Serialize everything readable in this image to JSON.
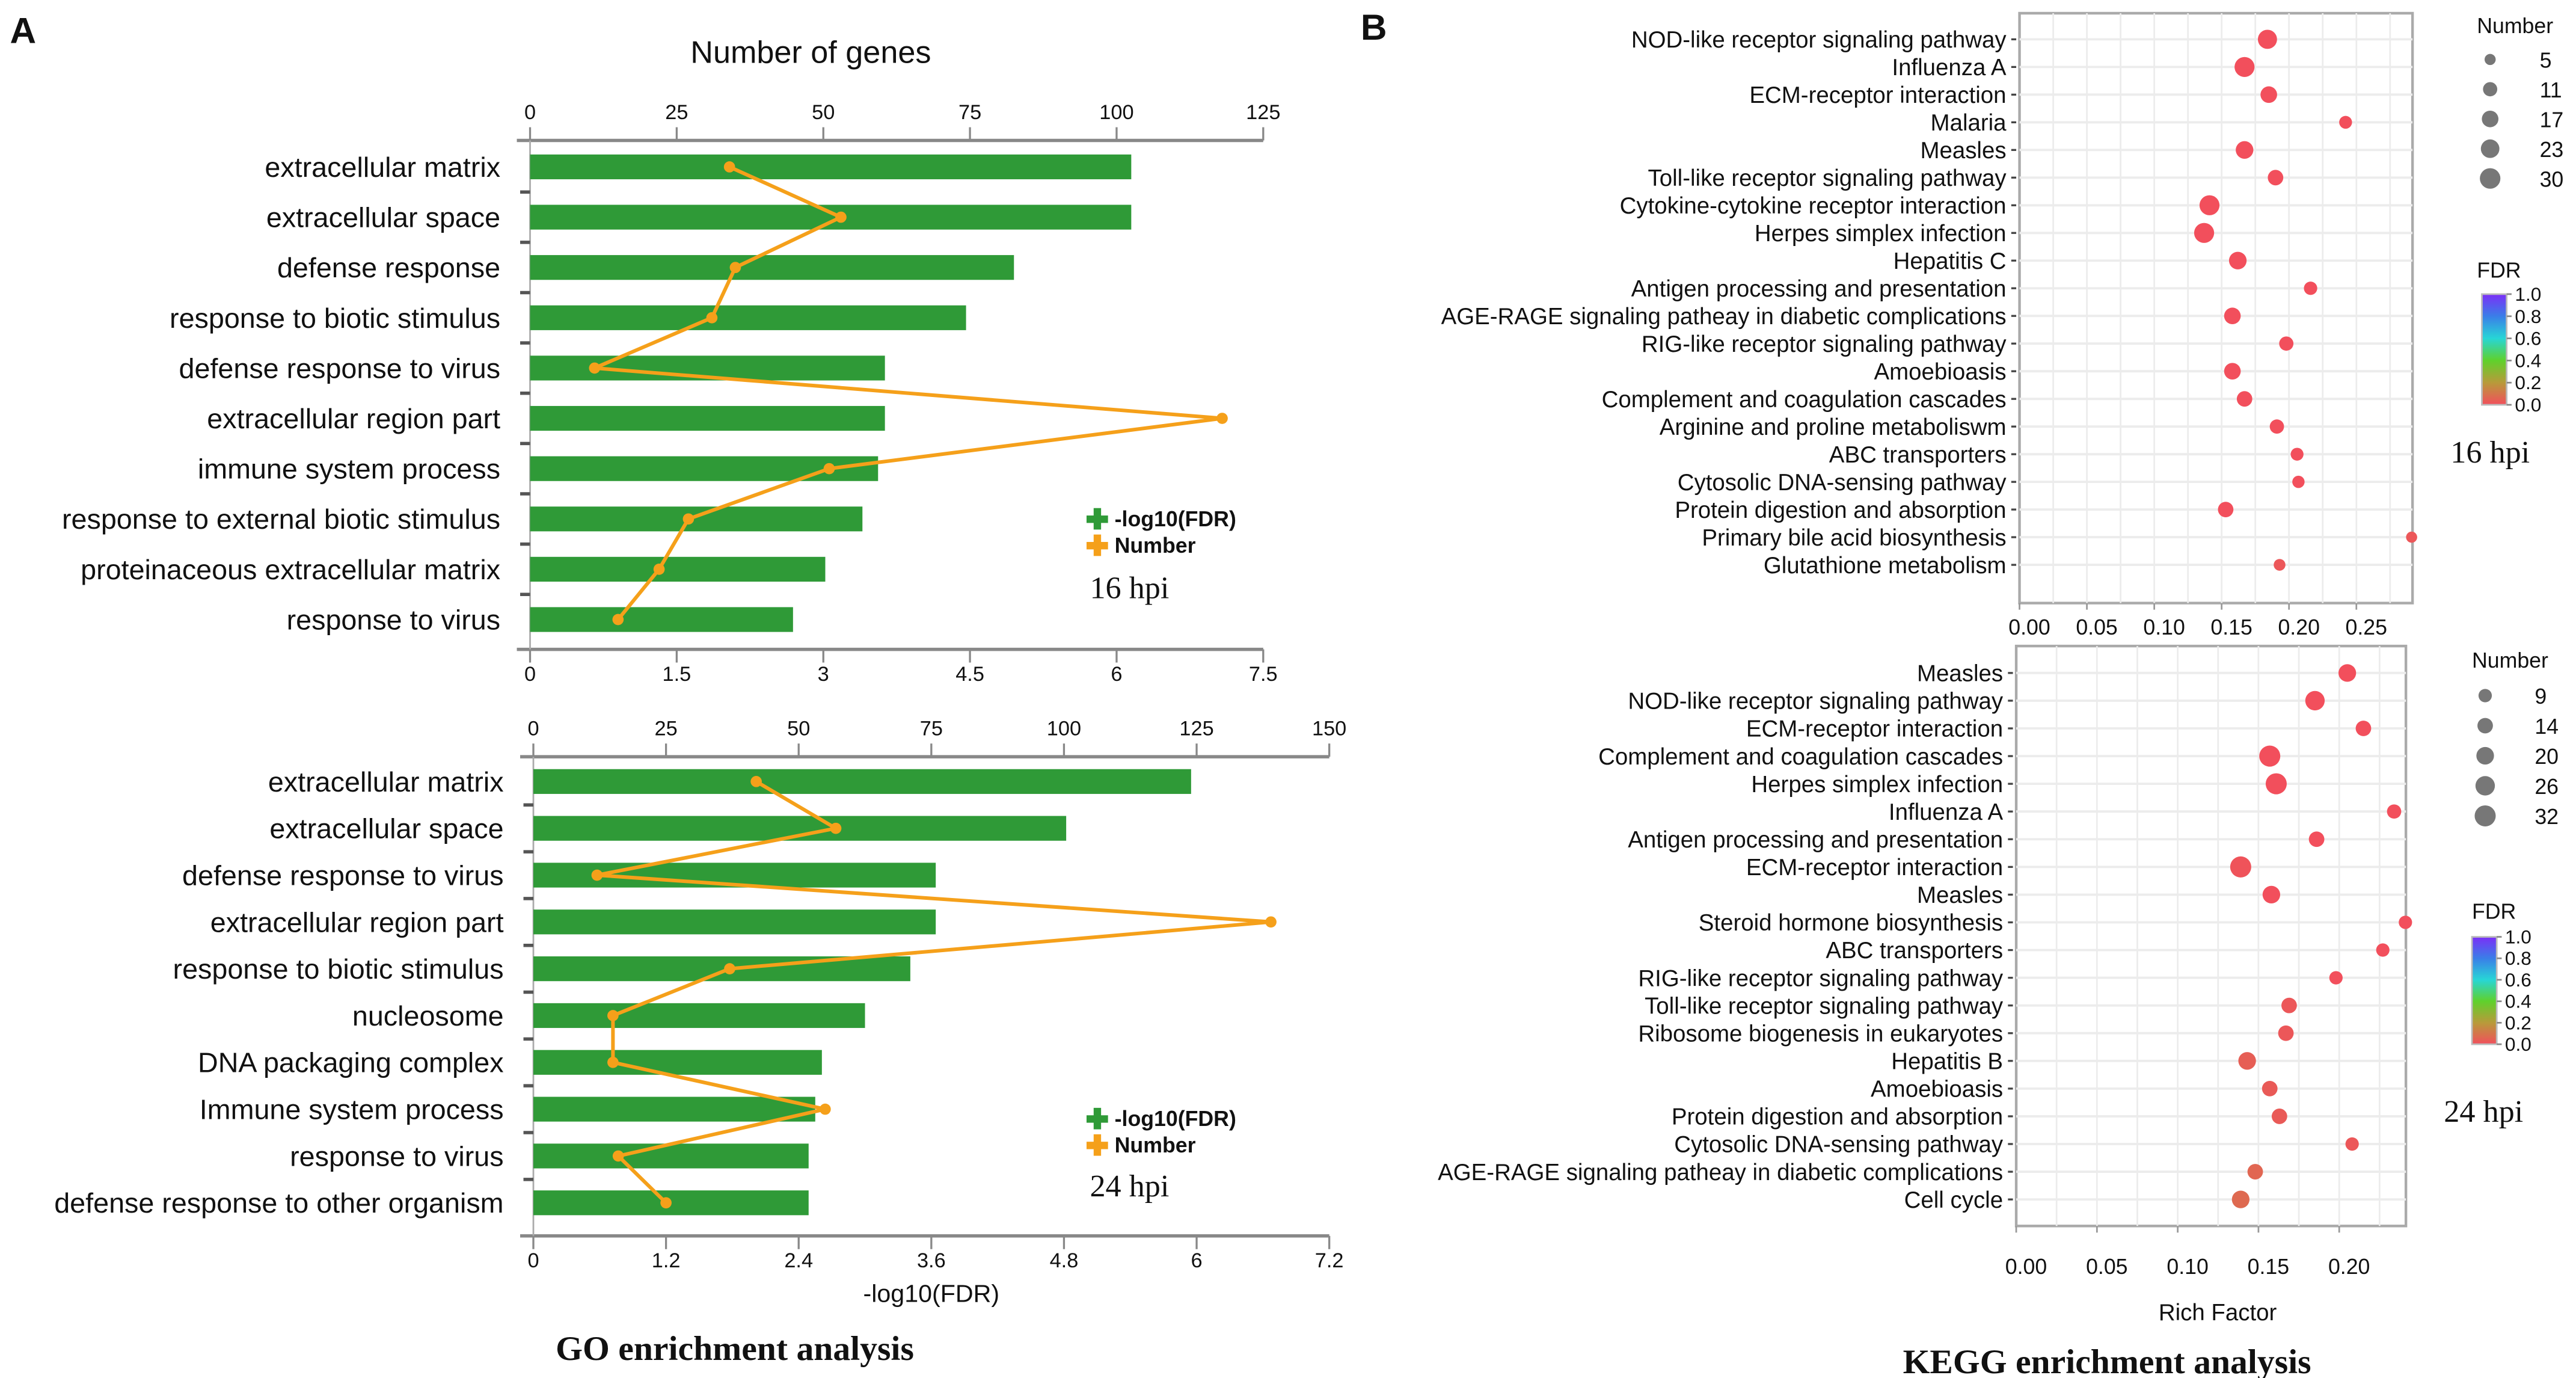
{
  "panel_labels": {
    "a": "A",
    "b": "B"
  },
  "figure_titles": {
    "go": "GO enrichment analysis",
    "kegg": "KEGG enrichment analysis"
  },
  "chart_data": [
    {
      "type": "bar",
      "id": "go16",
      "timepoint": "16 hpi",
      "title": "Number of genes",
      "top_axis": {
        "label": "Number of genes",
        "range": [
          0,
          125
        ],
        "ticks": [
          "0",
          "25",
          "50",
          "75",
          "100",
          "125"
        ]
      },
      "bottom_axis": {
        "label": "",
        "range": [
          0,
          7.5
        ],
        "ticks": [
          "0",
          "1.5",
          "3",
          "4.5",
          "6",
          "7.5"
        ]
      },
      "categories": [
        "extracellular matrix",
        "extracellular space",
        "defense response",
        "response to biotic stimulus",
        "defense response to virus",
        "extracellular region part",
        "immune system process",
        "response to external biotic stimulus",
        "proteinaceous extracellular matrix",
        "response to virus"
      ],
      "series": [
        {
          "name": "-log10(FDR)",
          "kind": "bar",
          "axis": "bottom",
          "color": "#2f9a37",
          "values": [
            6.15,
            6.15,
            4.95,
            4.46,
            3.63,
            3.63,
            3.56,
            3.4,
            3.02,
            2.69
          ]
        },
        {
          "name": "Number",
          "kind": "line",
          "axis": "top",
          "color": "#f5a01a",
          "values": [
            34,
            53,
            35,
            31,
            11,
            118,
            51,
            27,
            22,
            15
          ]
        }
      ],
      "legend": "bottom-right"
    },
    {
      "type": "bar",
      "id": "go24",
      "timepoint": "24 hpi",
      "title": "",
      "top_axis": {
        "label": "",
        "range": [
          0,
          150
        ],
        "ticks": [
          "0",
          "25",
          "50",
          "75",
          "100",
          "125",
          "150"
        ]
      },
      "bottom_axis": {
        "label": "-log10(FDR)",
        "range": [
          0,
          7.2
        ],
        "ticks": [
          "0",
          "1.2",
          "2.4",
          "3.6",
          "4.8",
          "6",
          "7.2"
        ]
      },
      "categories": [
        "extracellular matrix",
        "extracellular space",
        "defense response to virus",
        "extracellular region part",
        "response to biotic stimulus",
        "nucleosome",
        "DNA packaging complex",
        "Immune system process",
        "response to virus",
        "defense response to other organism"
      ],
      "series": [
        {
          "name": "-log10(FDR)",
          "kind": "bar",
          "axis": "bottom",
          "color": "#2f9a37",
          "values": [
            5.95,
            4.82,
            3.64,
            3.64,
            3.41,
            3.0,
            2.61,
            2.55,
            2.49,
            2.49
          ]
        },
        {
          "name": "Number",
          "kind": "line",
          "axis": "top",
          "color": "#f5a01a",
          "values": [
            42,
            57,
            12,
            139,
            37,
            15,
            15,
            55,
            16,
            25
          ]
        }
      ],
      "legend": "bottom-right"
    },
    {
      "type": "scatter",
      "id": "kegg16",
      "timepoint": "16 hpi",
      "xlabel": "",
      "xlim": [
        0,
        0.29
      ],
      "x_ticks": [
        "0.00",
        "0.05",
        "0.10",
        "0.15",
        "0.20",
        "0.25"
      ],
      "categories": [
        "NOD-like receptor signaling pathway",
        "Influenza A",
        "ECM-receptor interaction",
        "Malaria",
        "Measles",
        "Toll-like receptor signaling pathway",
        "Cytokine-cytokine receptor interaction",
        "Herpes simplex infection",
        "Hepatitis C",
        "Antigen processing and presentation",
        "AGE-RAGE signaling patheay in diabetic complications",
        "RIG-like receptor signaling pathway",
        "Amoebioasis",
        "Complement and coagulation cascades",
        "Arginine and proline metaboliswm",
        "ABC transporters",
        "Cytosolic DNA-sensing pathway",
        "Protein digestion and absorption",
        "Primary bile acid biosynthesis",
        "Glutathione metabolism"
      ],
      "rich_factor": [
        0.184,
        0.167,
        0.185,
        0.242,
        0.167,
        0.19,
        0.141,
        0.137,
        0.162,
        0.216,
        0.158,
        0.198,
        0.158,
        0.167,
        0.191,
        0.206,
        0.207,
        0.153,
        0.291,
        0.193
      ],
      "number": [
        25,
        28,
        17,
        8,
        20,
        14,
        28,
        28,
        20,
        9,
        17,
        11,
        17,
        14,
        11,
        8,
        7,
        14,
        5,
        6
      ],
      "fdr": [
        0,
        0,
        0,
        0,
        0,
        0,
        0,
        0,
        0,
        0,
        0,
        0,
        0,
        0,
        0,
        0,
        0,
        0,
        0.02,
        0.02
      ],
      "size_legend": {
        "title": "Number",
        "values": [
          "5",
          "11",
          "17",
          "23",
          "30"
        ]
      },
      "color_legend": {
        "title": "FDR",
        "ticks": [
          "1.0",
          "0.8",
          "0.6",
          "0.4",
          "0.2",
          "0.0"
        ]
      }
    },
    {
      "type": "scatter",
      "id": "kegg24",
      "timepoint": "24 hpi",
      "xlabel": "Rich Factor",
      "xlim": [
        0,
        0.241
      ],
      "x_ticks": [
        "0.00",
        "0.05",
        "0.10",
        "0.15",
        "0.20"
      ],
      "categories": [
        "Measles",
        "NOD-like receptor signaling pathway",
        "ECM-receptor interaction",
        "Complement and coagulation cascades",
        "Herpes simplex infection",
        "Influenza A",
        "Antigen processing and presentation",
        "ECM-receptor interaction",
        "",
        "Steroid hormone biosynthesis",
        "ABC transporters",
        "RIG-like receptor signaling pathway",
        "Toll-like receptor signaling pathway",
        "Ribosome biogenesis in eukaryotes",
        "Hepatitis B",
        "Amoebioasis",
        "Protein digestion and absorption",
        "Cytosolic DNA-sensing pathway",
        "AGE-RAGE signaling patheay in diabetic complications",
        "Cell cycle"
      ],
      "overlay_label": {
        "index": 9,
        "text": "Measles"
      },
      "rich_factor": [
        0.205,
        0.185,
        0.215,
        0.157,
        0.161,
        0.234,
        0.186,
        0.139,
        0.158,
        0.241,
        0.227,
        0.198,
        0.169,
        0.167,
        0.143,
        0.157,
        0.163,
        0.208,
        0.148,
        0.139
      ],
      "number": [
        20,
        26,
        14,
        32,
        32,
        11,
        14,
        32,
        20,
        9,
        9,
        9,
        14,
        14,
        20,
        14,
        14,
        9,
        14,
        20
      ],
      "fdr": [
        0,
        0,
        0,
        0,
        0,
        0,
        0,
        0.01,
        0,
        0,
        0,
        0,
        0.02,
        0.02,
        0.04,
        0.03,
        0.03,
        0.02,
        0.06,
        0.07
      ],
      "size_legend": {
        "title": "Number",
        "values": [
          "9",
          "14",
          "20",
          "26",
          "32"
        ]
      },
      "color_legend": {
        "title": "FDR",
        "ticks": [
          "1.0",
          "0.8",
          "0.6",
          "0.4",
          "0.2",
          "0.0"
        ]
      }
    }
  ],
  "fdr_colors": [
    "#f24f5c",
    "#b89a3a",
    "#5fd12c",
    "#27d6d6",
    "#3a7ee8",
    "#7b2ff7"
  ],
  "size_legend_color": "#777777"
}
